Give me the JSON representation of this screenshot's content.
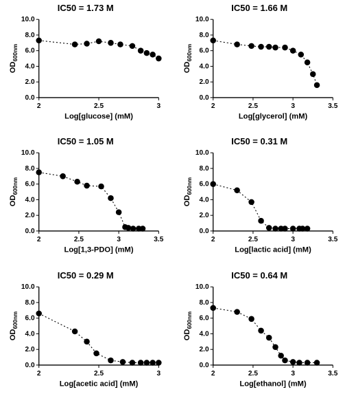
{
  "global": {
    "background_color": "#ffffff",
    "text_color": "#000000",
    "axis_color": "#000000",
    "marker_color": "#000000",
    "marker_radius": 4.2,
    "line_color": "#000000",
    "line_dash": "2,3",
    "line_width": 1.1,
    "title_fontsize": 13,
    "axis_label_fontsize": 11,
    "tick_fontsize": 10,
    "ylim": [
      0,
      10
    ],
    "ytick_step": 2,
    "ylabel": "OD",
    "ylabel_sub": "600nm",
    "ytick_labels": [
      "0.0",
      "2.0",
      "4.0",
      "6.0",
      "8.0",
      "10.0"
    ]
  },
  "panels": [
    {
      "title": "IC50 = 1.73 M",
      "xlabel": "Log[glucose] (mM)",
      "xlim": [
        2,
        3
      ],
      "xticks": [
        2,
        2.5,
        3
      ],
      "xtick_labels": [
        "2",
        "2.5",
        "3"
      ],
      "data": [
        {
          "x": 2.0,
          "y": 7.3
        },
        {
          "x": 2.3,
          "y": 6.8
        },
        {
          "x": 2.4,
          "y": 6.9
        },
        {
          "x": 2.5,
          "y": 7.2
        },
        {
          "x": 2.6,
          "y": 7.0
        },
        {
          "x": 2.68,
          "y": 6.8
        },
        {
          "x": 2.78,
          "y": 6.6
        },
        {
          "x": 2.85,
          "y": 6.0
        },
        {
          "x": 2.9,
          "y": 5.7
        },
        {
          "x": 2.95,
          "y": 5.5
        },
        {
          "x": 3.0,
          "y": 5.0
        }
      ]
    },
    {
      "title": "IC50 = 1.66 M",
      "xlabel": "Log[glycerol] (mM)",
      "xlim": [
        2,
        3.5
      ],
      "xticks": [
        2,
        2.5,
        3,
        3.5
      ],
      "xtick_labels": [
        "2",
        "2.5",
        "3",
        "3.5"
      ],
      "data": [
        {
          "x": 2.0,
          "y": 7.3
        },
        {
          "x": 2.3,
          "y": 6.8
        },
        {
          "x": 2.48,
          "y": 6.6
        },
        {
          "x": 2.6,
          "y": 6.5
        },
        {
          "x": 2.7,
          "y": 6.5
        },
        {
          "x": 2.78,
          "y": 6.4
        },
        {
          "x": 2.9,
          "y": 6.4
        },
        {
          "x": 3.0,
          "y": 6.0
        },
        {
          "x": 3.1,
          "y": 5.5
        },
        {
          "x": 3.18,
          "y": 4.5
        },
        {
          "x": 3.25,
          "y": 3.0
        },
        {
          "x": 3.3,
          "y": 1.6
        }
      ]
    },
    {
      "title": "IC50 = 1.05 M",
      "xlabel": "Log[1,3-PDO] (mM)",
      "xlim": [
        2,
        3.5
      ],
      "xticks": [
        2,
        2.5,
        3,
        3.5
      ],
      "xtick_labels": [
        "2",
        "2.5",
        "3",
        "3.5"
      ],
      "data": [
        {
          "x": 2.0,
          "y": 7.5
        },
        {
          "x": 2.3,
          "y": 7.0
        },
        {
          "x": 2.48,
          "y": 6.3
        },
        {
          "x": 2.6,
          "y": 5.8
        },
        {
          "x": 2.78,
          "y": 5.7
        },
        {
          "x": 2.9,
          "y": 4.2
        },
        {
          "x": 3.0,
          "y": 2.4
        },
        {
          "x": 3.08,
          "y": 0.5
        },
        {
          "x": 3.12,
          "y": 0.4
        },
        {
          "x": 3.18,
          "y": 0.3
        },
        {
          "x": 3.25,
          "y": 0.3
        },
        {
          "x": 3.3,
          "y": 0.3
        }
      ]
    },
    {
      "title": "IC50 = 0.31 M",
      "xlabel": "Log[lactic acid] (mM)",
      "xlim": [
        2,
        3.5
      ],
      "xticks": [
        2,
        2.5,
        3,
        3.5
      ],
      "xtick_labels": [
        "2",
        "2.5",
        "3",
        "3.5"
      ],
      "data": [
        {
          "x": 2.0,
          "y": 6.0
        },
        {
          "x": 2.3,
          "y": 5.2
        },
        {
          "x": 2.48,
          "y": 3.7
        },
        {
          "x": 2.6,
          "y": 1.3
        },
        {
          "x": 2.7,
          "y": 0.4
        },
        {
          "x": 2.78,
          "y": 0.3
        },
        {
          "x": 2.85,
          "y": 0.3
        },
        {
          "x": 2.9,
          "y": 0.3
        },
        {
          "x": 3.0,
          "y": 0.3
        },
        {
          "x": 3.08,
          "y": 0.3
        },
        {
          "x": 3.12,
          "y": 0.3
        },
        {
          "x": 3.18,
          "y": 0.3
        }
      ]
    },
    {
      "title": "IC50 = 0.29 M",
      "xlabel": "Log[acetic acid] (mM)",
      "xlim": [
        2,
        3
      ],
      "xticks": [
        2,
        2.5,
        3
      ],
      "xtick_labels": [
        "2",
        "2.5",
        "3"
      ],
      "data": [
        {
          "x": 2.0,
          "y": 6.6
        },
        {
          "x": 2.3,
          "y": 4.3
        },
        {
          "x": 2.4,
          "y": 3.0
        },
        {
          "x": 2.48,
          "y": 1.5
        },
        {
          "x": 2.6,
          "y": 0.6
        },
        {
          "x": 2.7,
          "y": 0.4
        },
        {
          "x": 2.78,
          "y": 0.3
        },
        {
          "x": 2.85,
          "y": 0.3
        },
        {
          "x": 2.9,
          "y": 0.3
        },
        {
          "x": 2.95,
          "y": 0.3
        },
        {
          "x": 3.0,
          "y": 0.3
        }
      ]
    },
    {
      "title": "IC50 = 0.64 M",
      "xlabel": "Log[ethanol] (mM)",
      "xlim": [
        2,
        3.5
      ],
      "xticks": [
        2,
        2.5,
        3,
        3.5
      ],
      "xtick_labels": [
        "2",
        "2.5",
        "3",
        "3.5"
      ],
      "data": [
        {
          "x": 2.0,
          "y": 7.3
        },
        {
          "x": 2.3,
          "y": 6.8
        },
        {
          "x": 2.48,
          "y": 5.9
        },
        {
          "x": 2.6,
          "y": 4.4
        },
        {
          "x": 2.7,
          "y": 3.5
        },
        {
          "x": 2.78,
          "y": 2.3
        },
        {
          "x": 2.85,
          "y": 1.2
        },
        {
          "x": 2.9,
          "y": 0.6
        },
        {
          "x": 3.0,
          "y": 0.4
        },
        {
          "x": 3.08,
          "y": 0.3
        },
        {
          "x": 3.18,
          "y": 0.3
        },
        {
          "x": 3.3,
          "y": 0.3
        }
      ]
    }
  ]
}
